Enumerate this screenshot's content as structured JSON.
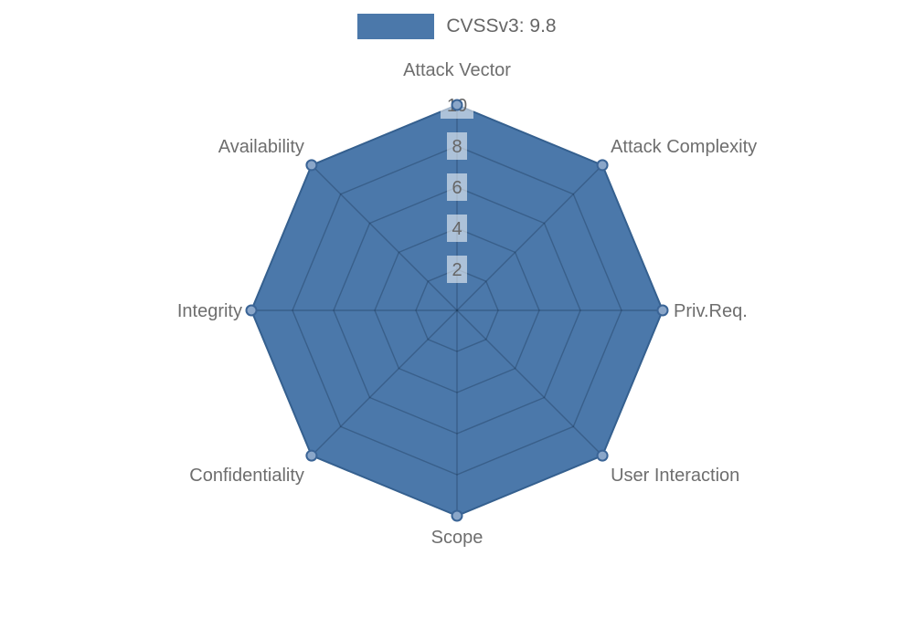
{
  "legend": {
    "position": "top-center"
  },
  "chart_data": {
    "type": "radar",
    "title": "CVSSv3: 9.8",
    "categories": [
      "Attack Vector",
      "Attack Complexity",
      "Priv.Req.",
      "User Interaction",
      "Scope",
      "Confidentiality",
      "Integrity",
      "Availability"
    ],
    "series": [
      {
        "name": "CVSSv3: 9.8",
        "values": [
          10,
          10,
          10,
          10,
          10,
          10,
          10,
          10
        ]
      }
    ],
    "rlim": [
      0,
      10
    ],
    "radial_ticks": [
      2,
      4,
      6,
      8,
      10
    ],
    "grid": true,
    "legend_position": "top-center",
    "colors": {
      "fill": "#4b78aa",
      "border": "#35608f",
      "grid_line": "rgba(12,32,58,0.28)",
      "marker_fill": "#8aa6c9",
      "marker_border": "#3a6496",
      "tick_backdrop": "rgba(255,255,255,0.55)",
      "tick_text": "#666666",
      "category_text": "#6e6e6e",
      "legend_text": "#666666"
    }
  }
}
